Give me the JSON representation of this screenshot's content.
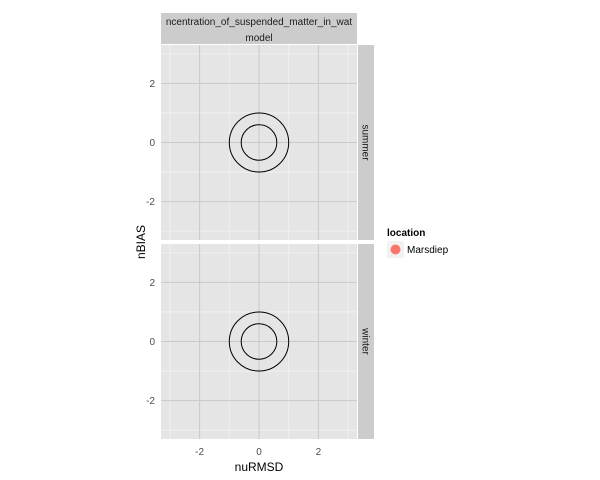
{
  "chart_data": {
    "type": "scatter",
    "facet_col_labels": [
      "ncentration_of_suspended_matter_in_wat",
      "model"
    ],
    "facets": [
      {
        "row_label": "summer",
        "circles": [
          0.6,
          1.0
        ],
        "points": []
      },
      {
        "row_label": "winter",
        "circles": [
          0.6,
          1.0
        ],
        "points": []
      }
    ],
    "xlabel": "nuRMSD",
    "ylabel": "nBIAS",
    "xlim": [
      -3.3,
      3.3
    ],
    "ylim": [
      -3.3,
      3.3
    ],
    "x_ticks": [
      -2,
      0,
      2
    ],
    "x_tick_labels": [
      "-2",
      "0",
      "2"
    ],
    "y_ticks": [
      -2,
      0,
      2
    ],
    "y_tick_labels": [
      "-2",
      "0",
      "2"
    ],
    "grid": true,
    "legend": {
      "title": "location",
      "position": "right",
      "entries": [
        {
          "label": "Marsdiep",
          "color": "#F8766D"
        }
      ]
    },
    "colors": {
      "panel_bg": "#E5E5E5",
      "grid_major": "#C9C9C9",
      "grid_minor": "#F2F2F2",
      "strip_col_bg": "#CCCCCC",
      "strip_row_bg": "#CCCCCC",
      "circle": "#000000"
    }
  }
}
